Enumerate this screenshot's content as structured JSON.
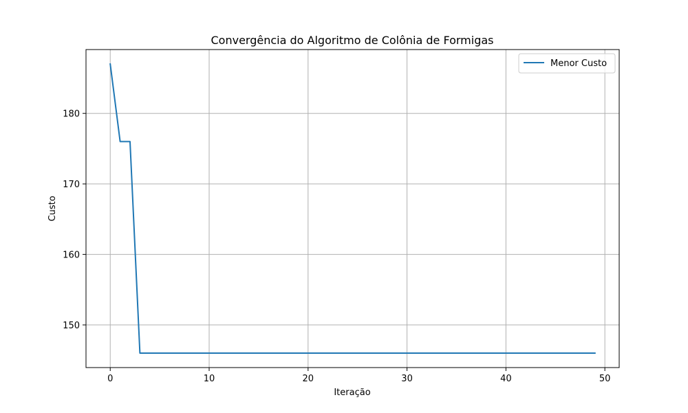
{
  "chart_data": {
    "type": "line",
    "title": "Convergência do Algoritmo de Colônia de Formigas",
    "xlabel": "Iteração",
    "ylabel": "Custo",
    "xlim": [
      -2.45,
      51.45
    ],
    "ylim": [
      143.95,
      189.05
    ],
    "xticks": [
      0,
      10,
      20,
      30,
      40,
      50
    ],
    "yticks": [
      150,
      160,
      170,
      180
    ],
    "grid": true,
    "legend_position": "top-right",
    "series": [
      {
        "name": "Menor Custo",
        "color": "#1f77b4",
        "x": [
          0,
          1,
          2,
          3,
          4,
          5,
          6,
          7,
          8,
          9,
          10,
          11,
          12,
          13,
          14,
          15,
          16,
          17,
          18,
          19,
          20,
          21,
          22,
          23,
          24,
          25,
          26,
          27,
          28,
          29,
          30,
          31,
          32,
          33,
          34,
          35,
          36,
          37,
          38,
          39,
          40,
          41,
          42,
          43,
          44,
          45,
          46,
          47,
          48,
          49
        ],
        "y": [
          187,
          176,
          176,
          146,
          146,
          146,
          146,
          146,
          146,
          146,
          146,
          146,
          146,
          146,
          146,
          146,
          146,
          146,
          146,
          146,
          146,
          146,
          146,
          146,
          146,
          146,
          146,
          146,
          146,
          146,
          146,
          146,
          146,
          146,
          146,
          146,
          146,
          146,
          146,
          146,
          146,
          146,
          146,
          146,
          146,
          146,
          146,
          146,
          146,
          146
        ]
      }
    ]
  }
}
